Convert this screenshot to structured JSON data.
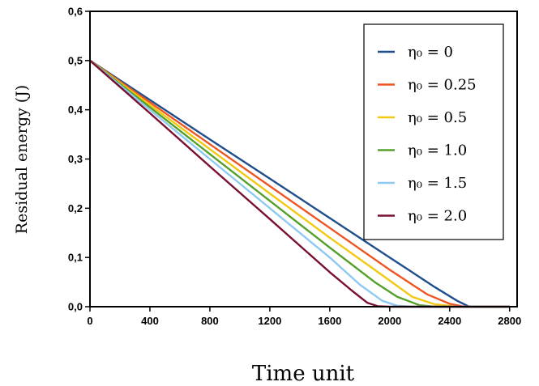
{
  "chart_data": {
    "type": "line",
    "xlabel": "Time unit",
    "ylabel": "Residual energy (J)",
    "xlim": [
      0,
      2850
    ],
    "ylim": [
      0,
      0.6
    ],
    "xticks": [
      0,
      400,
      800,
      1200,
      1600,
      2000,
      2400,
      2800
    ],
    "yticks": [
      0.0,
      0.1,
      0.2,
      0.3,
      0.4,
      0.5,
      0.6
    ],
    "xtick_labels": [
      "0",
      "400",
      "800",
      "1200",
      "1600",
      "2000",
      "2400",
      "2800"
    ],
    "ytick_labels": [
      "0,0",
      "0,1",
      "0,2",
      "0,3",
      "0,4",
      "0,5",
      "0,6"
    ],
    "grid": false,
    "legend_position": "top-right",
    "series": [
      {
        "name": "η₀ = 0",
        "color": "#1f4e8c",
        "x": [
          0,
          400,
          800,
          1200,
          1600,
          2000,
          2300,
          2450,
          2530,
          2800
        ],
        "y": [
          0.5,
          0.42,
          0.34,
          0.26,
          0.18,
          0.1,
          0.04,
          0.012,
          0.0,
          0.0
        ]
      },
      {
        "name": "η₀ = 0.25",
        "color": "#ee5522",
        "x": [
          0,
          400,
          800,
          1200,
          1600,
          2000,
          2250,
          2400,
          2500,
          2800
        ],
        "y": [
          0.5,
          0.415,
          0.33,
          0.245,
          0.16,
          0.075,
          0.025,
          0.006,
          0.0,
          0.0
        ]
      },
      {
        "name": "η₀ = 0.5",
        "color": "#f2c811",
        "x": [
          0,
          400,
          800,
          1200,
          1600,
          1900,
          2150,
          2300,
          2450,
          2800
        ],
        "y": [
          0.5,
          0.41,
          0.32,
          0.23,
          0.14,
          0.075,
          0.02,
          0.005,
          0.0,
          0.0
        ]
      },
      {
        "name": "η₀ = 1.0",
        "color": "#55a02a",
        "x": [
          0,
          400,
          800,
          1200,
          1600,
          1900,
          2050,
          2200,
          2300,
          2800
        ],
        "y": [
          0.5,
          0.405,
          0.31,
          0.215,
          0.12,
          0.05,
          0.02,
          0.003,
          0.0,
          0.0
        ]
      },
      {
        "name": "η₀ = 1.5",
        "color": "#8ec9f2",
        "x": [
          0,
          400,
          800,
          1200,
          1600,
          1800,
          1950,
          2050,
          2150,
          2800
        ],
        "y": [
          0.5,
          0.4,
          0.3,
          0.2,
          0.1,
          0.045,
          0.012,
          0.002,
          0.0,
          0.0
        ]
      },
      {
        "name": "η₀ = 2.0",
        "color": "#7a1030",
        "x": [
          0,
          400,
          800,
          1200,
          1600,
          1750,
          1850,
          1920,
          2000,
          2800
        ],
        "y": [
          0.5,
          0.393,
          0.285,
          0.178,
          0.07,
          0.032,
          0.008,
          0.001,
          0.0,
          0.0
        ]
      }
    ]
  }
}
